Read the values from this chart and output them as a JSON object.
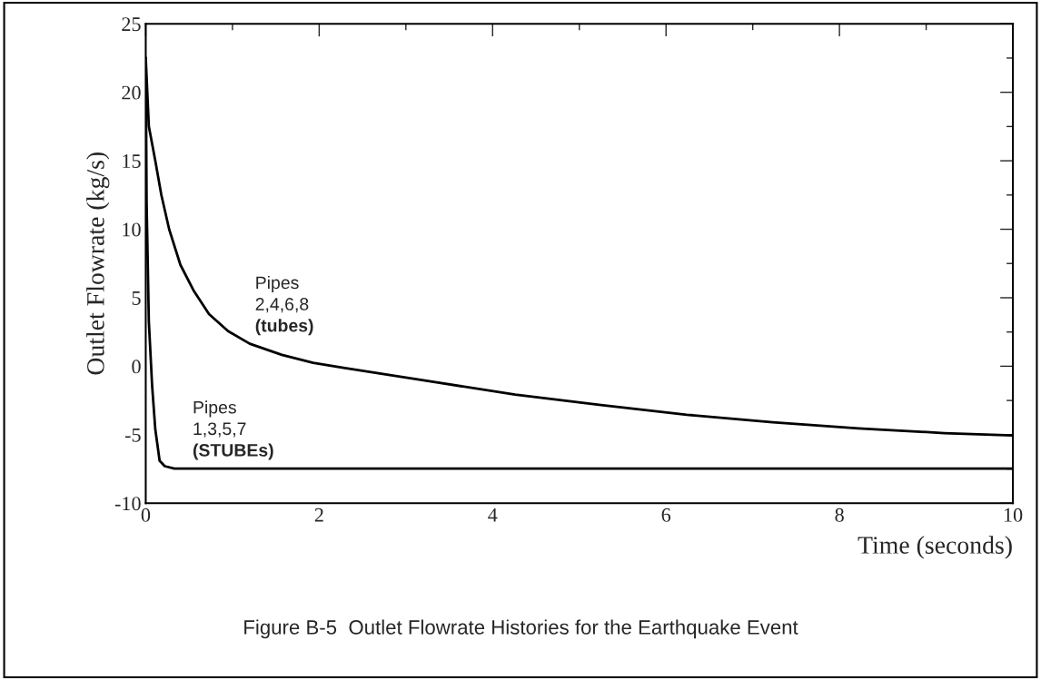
{
  "chart_data": {
    "type": "line",
    "title": "Figure B-5  Outlet Flowrate Histories for the Earthquake Event",
    "xlabel": "Time (seconds)",
    "ylabel": "Outlet Flowrate (kg/s)",
    "series": [
      {
        "color": "#000000",
        "x": [
          0,
          0.036,
          0.11,
          0.18,
          0.27,
          0.4,
          0.55,
          0.73,
          0.95,
          1.2,
          1.57,
          1.93,
          2.28,
          3.27,
          4.26,
          5.25,
          6.24,
          7.23,
          8.22,
          9.21,
          10
        ],
        "values": [
          22.5,
          17.5,
          15.0,
          12.5,
          10.0,
          7.4,
          5.55,
          3.8,
          2.56,
          1.64,
          0.83,
          0.25,
          -0.12,
          -1.1,
          -2.07,
          -2.84,
          -3.54,
          -4.09,
          -4.54,
          -4.88,
          -5.06
        ]
      },
      {
        "color": "#000000",
        "x": [
          0,
          0.01,
          0.036,
          0.073,
          0.11,
          0.14,
          0.16,
          0.22,
          0.33,
          10
        ],
        "values": [
          22.5,
          12.0,
          3.25,
          -1.36,
          -4.6,
          -5.97,
          -6.9,
          -7.3,
          -7.47,
          -7.47
        ]
      }
    ],
    "annotations": [
      "Pipes\n2,4,6,8\n(tubes)",
      "Pipes\n1,3,5,7\n(STUBEs)"
    ],
    "xlim": [
      0,
      10
    ],
    "xticks": [
      0,
      2,
      4,
      6,
      8,
      10
    ],
    "ylim": [
      -10,
      25
    ],
    "yticks": [
      -10,
      -5,
      0,
      5,
      10,
      15,
      20,
      25
    ],
    "grid": false,
    "legend": false,
    "line_style": "solid",
    "marker": "none"
  }
}
